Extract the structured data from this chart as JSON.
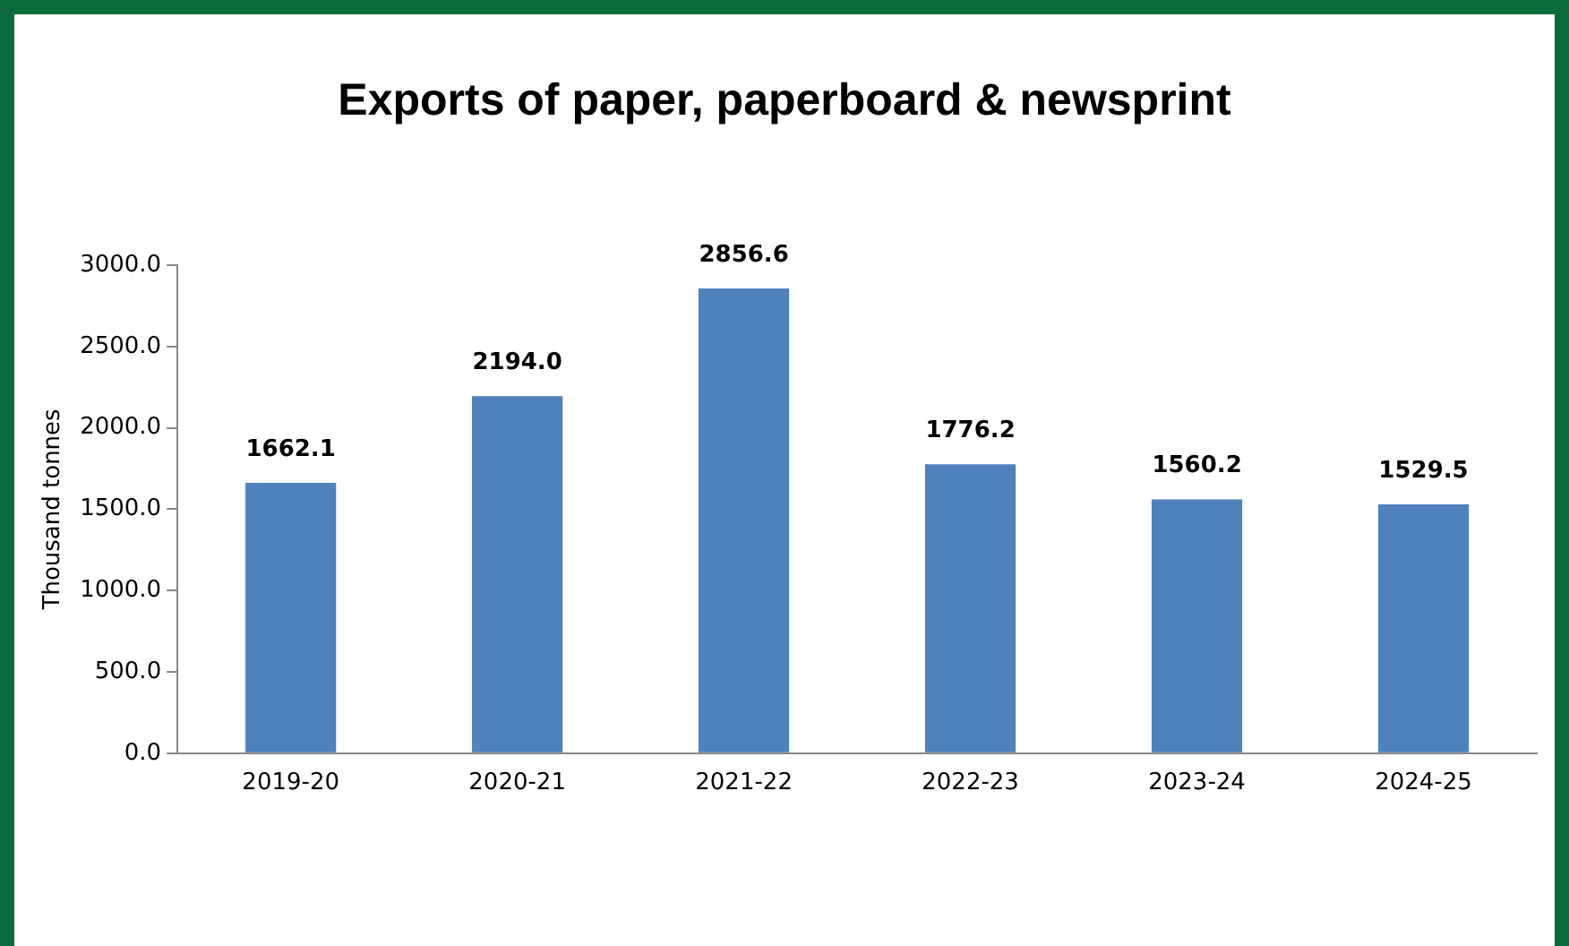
{
  "chart_data": {
    "type": "bar",
    "title": "Exports of paper, paperboard & newsprint",
    "ylabel": "Thousand tonnes",
    "categories": [
      "2019-20",
      "2020-21",
      "2021-22",
      "2022-23",
      "2023-24",
      "2024-25"
    ],
    "values": [
      1662.1,
      2194.0,
      2856.6,
      1776.2,
      1560.2,
      1529.5
    ],
    "value_labels": [
      "1662.1",
      "2194.0",
      "2856.6",
      "1776.2",
      "1560.2",
      "1529.5"
    ],
    "color": "#4f81bd",
    "ylim": [
      0,
      3000
    ],
    "yticks": [
      {
        "value": 0,
        "label": "0.0"
      },
      {
        "value": 500,
        "label": "500.0"
      },
      {
        "value": 1000,
        "label": "1000.0"
      },
      {
        "value": 1500,
        "label": "1500.0"
      },
      {
        "value": 2000,
        "label": "2000.0"
      },
      {
        "value": 2500,
        "label": "2500.0"
      },
      {
        "value": 3000,
        "label": "3000.0"
      }
    ],
    "grid": false,
    "legend": false
  }
}
